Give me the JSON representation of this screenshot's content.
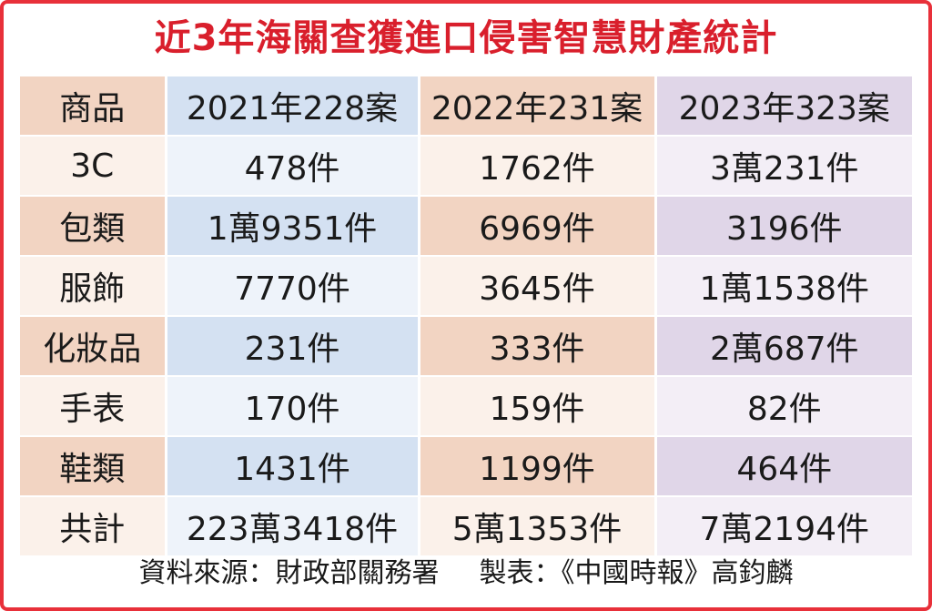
{
  "title": "近3年海關查獲進口侵害智慧財產統計",
  "colors": {
    "frame": "#e8303a",
    "title": "#d91f2c",
    "col_product_dark": "#f2d4c2",
    "col_2021_dark": "#d4e1f2",
    "col_2022_dark": "#f2d4c2",
    "col_2023_dark": "#e0d6e8"
  },
  "chart_data": {
    "type": "table",
    "title": "近3年海關查獲進口侵害智慧財產統計",
    "columns": [
      "商品",
      "2021年228案",
      "2022年231案",
      "2023年323案"
    ],
    "rows": [
      [
        "3C",
        "478件",
        "1762件",
        "3萬231件"
      ],
      [
        "包類",
        "1萬9351件",
        "6969件",
        "3196件"
      ],
      [
        "服飾",
        "7770件",
        "3645件",
        "1萬1538件"
      ],
      [
        "化妝品",
        "231件",
        "333件",
        "2萬687件"
      ],
      [
        "手表",
        "170件",
        "159件",
        "82件"
      ],
      [
        "鞋類",
        "1431件",
        "1199件",
        "464件"
      ],
      [
        "共計",
        "223萬3418件",
        "5萬1353件",
        "7萬2194件"
      ]
    ]
  },
  "footer": {
    "source": "資料來源：財政部關務署",
    "credit": "製表：《中國時報》高鈞麟"
  }
}
